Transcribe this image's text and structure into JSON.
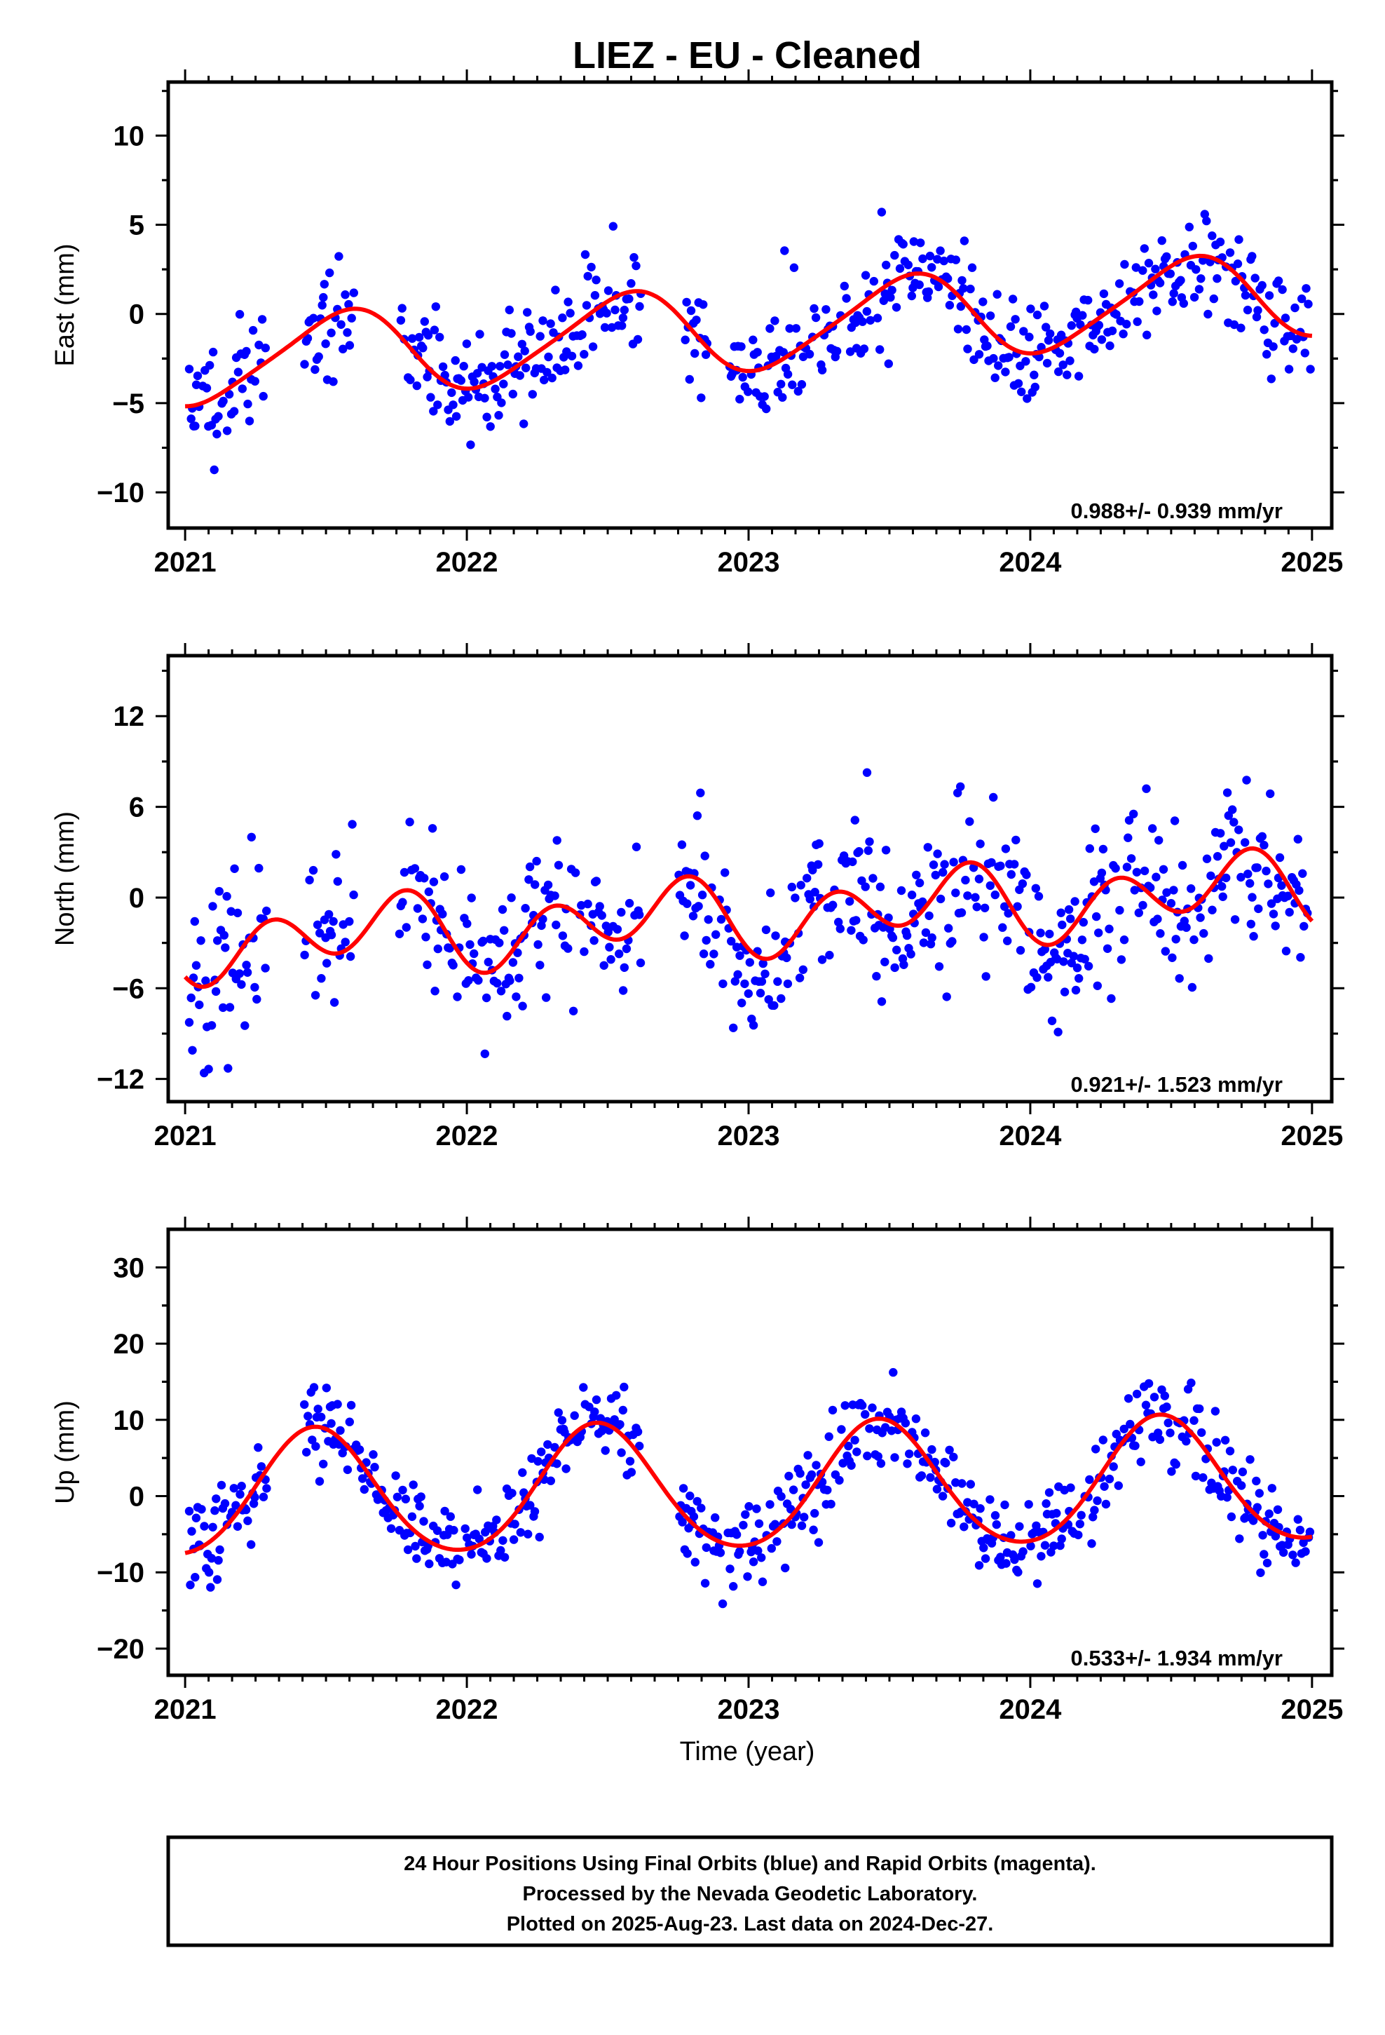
{
  "title": "LIEZ  - EU - Cleaned",
  "xlabel": "Time (year)",
  "footer": {
    "line1": "24 Hour Positions Using Final Orbits (blue) and Rapid Orbits (magenta).",
    "line2": "Processed by the Nevada Geodetic Laboratory.",
    "line3": "Plotted on 2025-Aug-23. Last data on 2024-Dec-27."
  },
  "colors": {
    "points": "#0000ff",
    "model": "#ff0000",
    "frame": "#000000"
  },
  "chart_data": [
    {
      "type": "scatter",
      "ylabel": "East (mm)",
      "rate_label": "0.988+/- 0.939 mm/yr",
      "xlim": [
        2020.94,
        2025.07
      ],
      "ylim": [
        -12.0,
        13.0
      ],
      "xticks": [
        2021,
        2022,
        2023,
        2024,
        2025
      ],
      "yticks": [
        -10,
        -5,
        0,
        5,
        10
      ],
      "ytick_labels": [
        "−10",
        "−5",
        "0",
        "5",
        "10"
      ],
      "model": {
        "offset": -0.8,
        "trend": 0.988,
        "annual_c": -2.2,
        "annual_s": -0.8,
        "semi_c": -0.2,
        "semi_s": 0.3,
        "start": 2021.0,
        "end": 2025.0
      },
      "noise": 2.6,
      "gaps": [
        [
          2021.29,
          2021.42
        ],
        [
          2021.6,
          2021.76
        ],
        [
          2022.62,
          2022.77
        ],
        [
          2022.87,
          2022.93
        ]
      ],
      "seed": 11
    },
    {
      "type": "scatter",
      "ylabel": "North (mm)",
      "rate_label": "0.921+/- 1.523 mm/yr",
      "xlim": [
        2020.94,
        2025.07
      ],
      "ylim": [
        -13.5,
        16.0
      ],
      "xticks": [
        2021,
        2022,
        2023,
        2024,
        2025
      ],
      "yticks": [
        -12,
        -6,
        0,
        6,
        12
      ],
      "ytick_labels": [
        "−12",
        "−6",
        "0",
        "6",
        "12"
      ],
      "model": {
        "offset": -1.2,
        "trend": 0.921,
        "annual_c": -0.6,
        "annual_s": -1.0,
        "semi_c": -1.6,
        "semi_s": -1.2,
        "start": 2021.0,
        "end": 2025.0
      },
      "noise": 4.2,
      "gaps": [
        [
          2021.29,
          2021.42
        ],
        [
          2021.6,
          2021.76
        ],
        [
          2022.62,
          2022.75
        ]
      ],
      "seed": 23
    },
    {
      "type": "scatter",
      "ylabel": "Up (mm)",
      "rate_label": "0.533+/- 1.934 mm/yr",
      "xlim": [
        2020.94,
        2025.07
      ],
      "ylim": [
        -23.5,
        35.0
      ],
      "xticks": [
        2021,
        2022,
        2023,
        2024,
        2025
      ],
      "yticks": [
        -20,
        -10,
        0,
        10,
        20,
        30
      ],
      "ytick_labels": [
        "−20",
        "−10",
        "0",
        "10",
        "20",
        "30"
      ],
      "model": {
        "offset": 1.0,
        "trend": 0.533,
        "annual_c": -8.0,
        "annual_s": 1.8,
        "semi_c": 0.6,
        "semi_s": -0.4,
        "start": 2021.0,
        "end": 2025.0
      },
      "noise": 4.6,
      "gaps": [
        [
          2021.29,
          2021.42
        ],
        [
          2022.62,
          2022.75
        ]
      ],
      "seed": 37
    }
  ]
}
